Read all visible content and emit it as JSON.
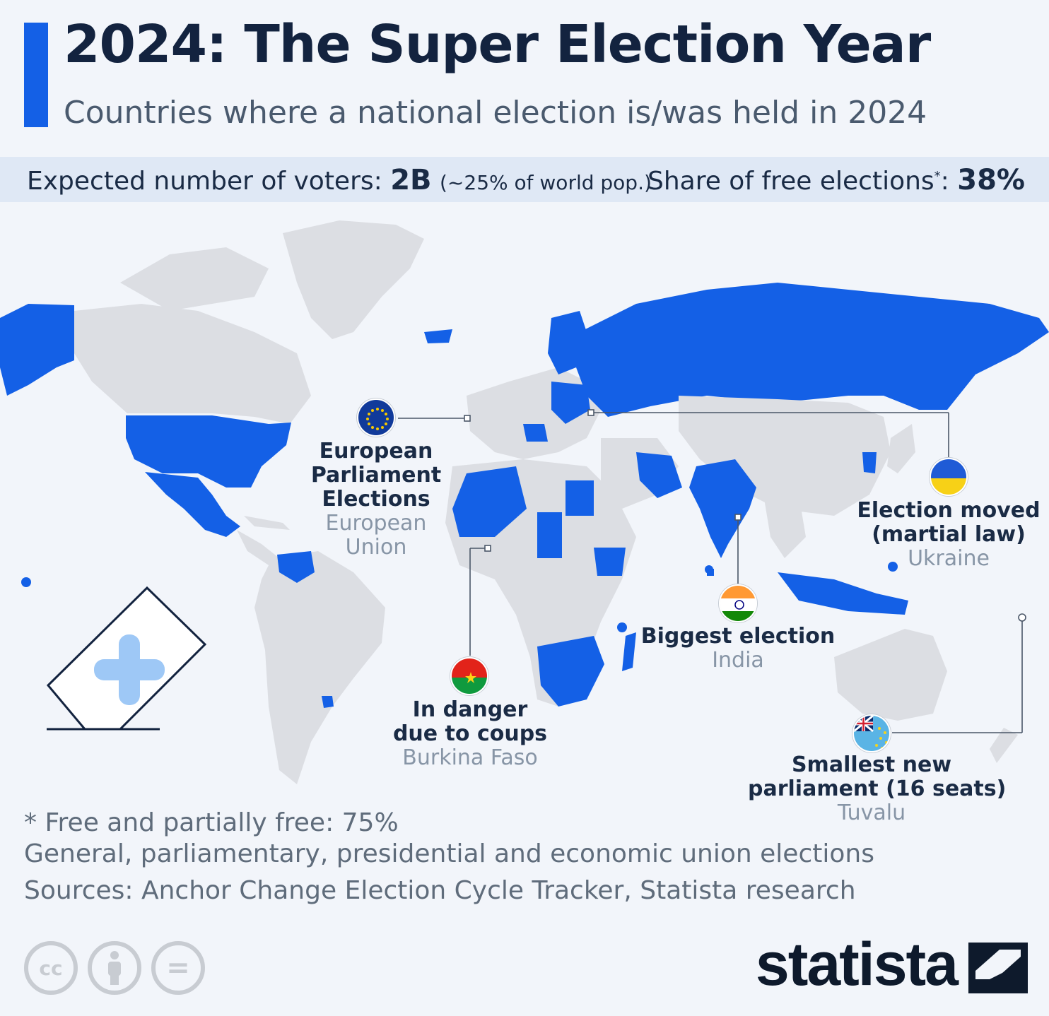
{
  "header": {
    "title": "2024: The Super Election Year",
    "subtitle": "Countries where a national election is/was held in 2024"
  },
  "stats": {
    "voters_label": "Expected number of voters: ",
    "voters_value": "2B",
    "voters_note": "(~25% of world pop.)",
    "share_label": "Share of free elections",
    "share_marker": "*",
    "share_colon": ": ",
    "share_value": "38%"
  },
  "callouts": {
    "eu": {
      "head1": "European",
      "head2": "Parliament",
      "head3": "Elections",
      "sub1": "European",
      "sub2": "Union"
    },
    "burkina": {
      "head1": "In danger",
      "head2": "due to coups",
      "sub": "Burkina Faso"
    },
    "india": {
      "head": "Biggest election",
      "sub": "India"
    },
    "ukraine": {
      "head1": "Election moved",
      "head2": "(martial law)",
      "sub": "Ukraine"
    },
    "tuvalu": {
      "head1": "Smallest new",
      "head2": "parliament (16 seats)",
      "sub": "Tuvalu"
    }
  },
  "footer": {
    "note": "* Free and partially free: 75%",
    "scope": "General, parliamentary, presidential and economic union elections",
    "sources": "Sources: Anchor Change Election Cycle Tracker, Statista research"
  },
  "license_icons": [
    "cc-icon",
    "attribution-icon",
    "no-derivatives-icon"
  ],
  "license_text": {
    "cc": "cc",
    "eq": "="
  },
  "brand": {
    "logo": "statista"
  },
  "colors": {
    "election_country": "#1460e6",
    "other_country": "#dcdee3",
    "accent": "#1460e6",
    "background": "#f2f5fa"
  }
}
